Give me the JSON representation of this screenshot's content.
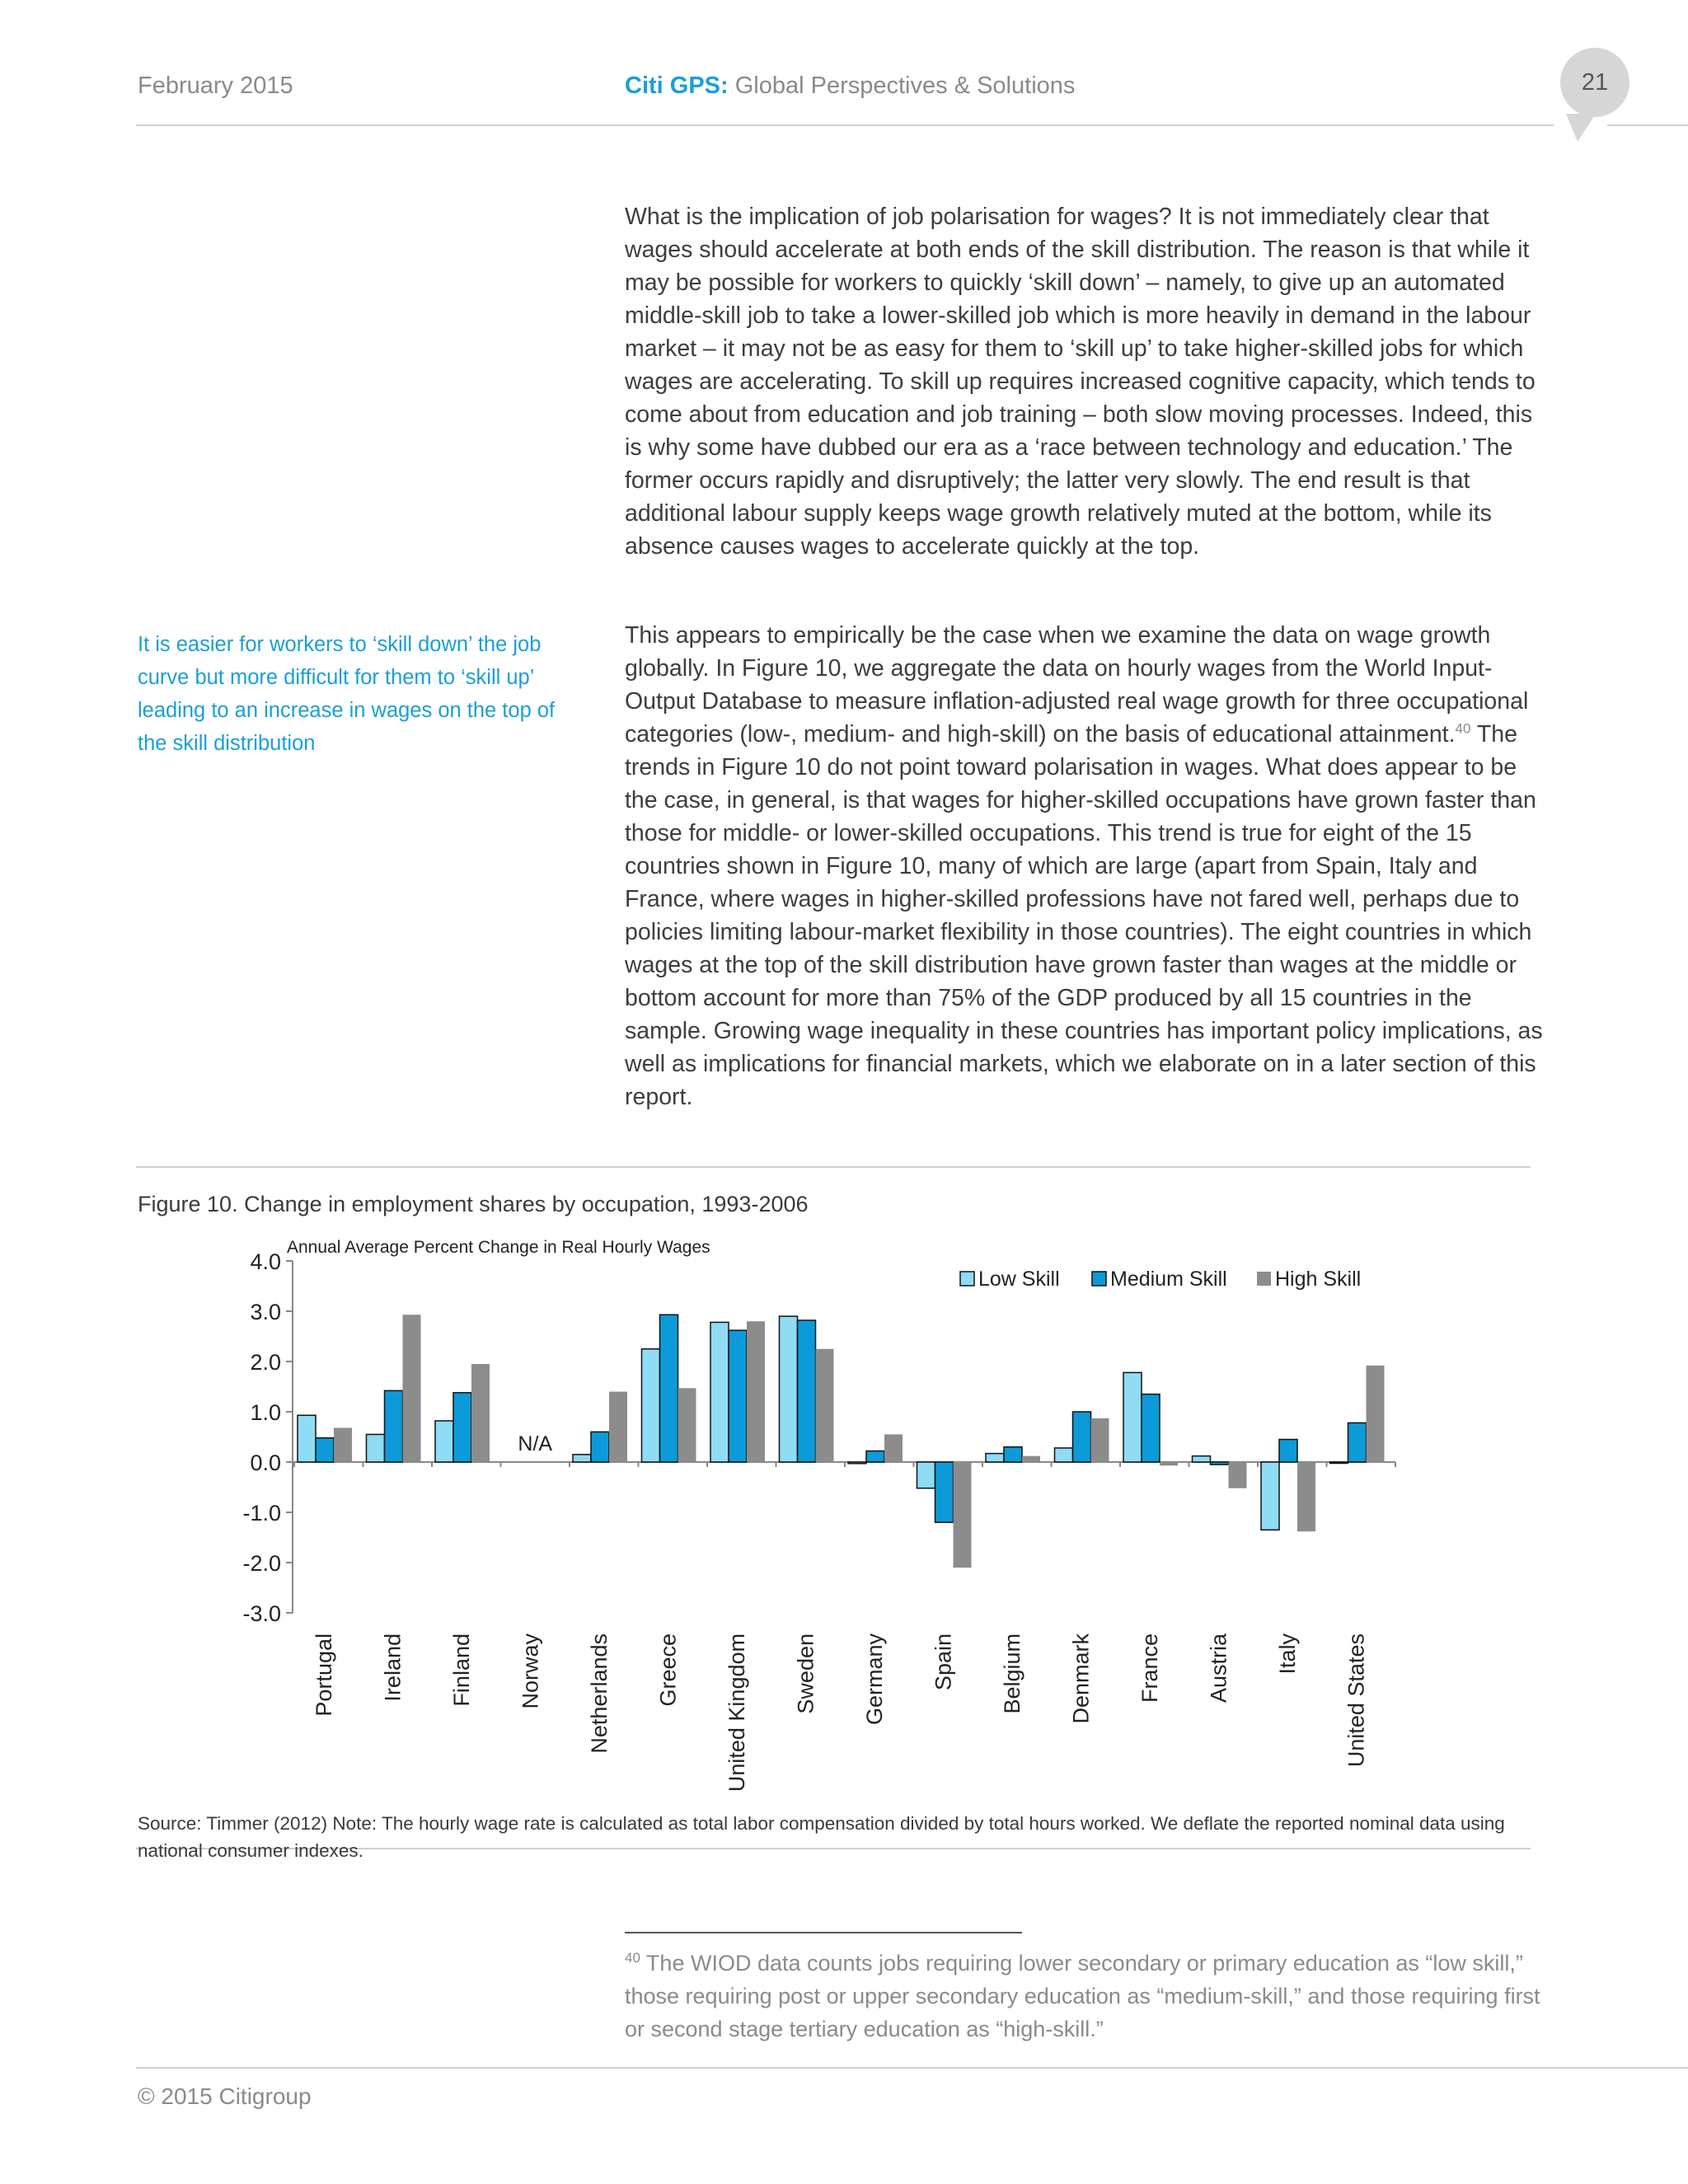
{
  "header": {
    "date": "February 2015",
    "brand": "Citi GPS:",
    "subtitle": "Global Perspectives & Solutions",
    "page_number": "21"
  },
  "body": {
    "paragraph1": "What is the implication of job polarisation for wages? It is not immediately clear that wages should accelerate at both ends of the skill distribution. The reason is that while it may be possible for workers to quickly ‘skill down’ – namely, to give up an automated middle-skill job to take a lower-skilled job which is more heavily in demand in the labour market – it may not be as easy for them to ‘skill up’ to take higher-skilled jobs for which wages are accelerating. To skill up requires increased cognitive capacity, which tends to come about from education and job training – both slow moving processes. Indeed, this is why some have dubbed our era as a ‘race between technology and education.’ The former occurs rapidly and disruptively; the latter very slowly. The end result is that additional labour supply keeps wage growth relatively muted at the bottom, while its absence causes wages to accelerate quickly at the top.",
    "paragraph2_before": "This appears to empirically be the case when we examine the data on wage growth globally. In Figure 10, we aggregate the data on hourly wages from the World Input-Output Database to measure inflation-adjusted real wage growth for three occupational categories (low-, medium- and high-skill) on the basis of educational attainment.",
    "paragraph2_ref": "40",
    "paragraph2_after": " The trends in Figure 10 do not point toward polarisation in wages. What does appear to be the case, in general, is that wages for higher-skilled occupations have grown faster than those for middle- or lower-skilled occupations. This trend is true for eight of the 15 countries shown in Figure 10, many of which are large (apart from Spain, Italy and France, where wages in higher-skilled professions have not fared well, perhaps due to policies limiting labour-market flexibility in those countries). The eight countries in which wages at the top of the skill distribution have grown faster than wages at the middle or bottom account for more than 75% of the GDP produced by all 15 countries in the sample. Growing wage inequality in these countries has important policy implications, as well as implications for financial markets, which we elaborate on in a later section of this report."
  },
  "sidebar_note": "It is easier for workers to ‘skill down’ the job curve but more difficult for them to ‘skill up’ leading to an increase in wages on the top of the skill distribution",
  "figure": {
    "title": "Figure 10. Change in employment shares by occupation, 1993-2006",
    "source": "Source: Timmer (2012) Note: The hourly wage rate is calculated as total labor compensation divided by total hours worked. We deflate the reported nominal data using national consumer indexes."
  },
  "chart_data": {
    "type": "bar",
    "title": "",
    "ylabel": "Annual Average Percent Change in Real Hourly Wages",
    "xlabel": "",
    "ylim": [
      -3.0,
      4.0
    ],
    "yticks": [
      "4.0",
      "3.0",
      "2.0",
      "1.0",
      "0.0",
      "-1.0",
      "-2.0",
      "-3.0"
    ],
    "grid": false,
    "legend_position": "top-right",
    "categories": [
      "Portugal",
      "Ireland",
      "Finland",
      "Norway",
      "Netherlands",
      "Greece",
      "United Kingdom",
      "Sweden",
      "Germany",
      "Spain",
      "Belgium",
      "Denmark",
      "France",
      "Austria",
      "Italy",
      "United States"
    ],
    "series": [
      {
        "name": "Low Skill",
        "color": "#8fdcf5",
        "values": [
          0.93,
          0.55,
          0.82,
          null,
          0.15,
          2.25,
          2.78,
          2.9,
          -0.03,
          -0.52,
          0.17,
          0.28,
          1.78,
          0.12,
          -1.35,
          -0.02
        ]
      },
      {
        "name": "Medium Skill",
        "color": "#0c9ad8",
        "values": [
          0.48,
          1.42,
          1.38,
          null,
          0.6,
          2.93,
          2.62,
          2.82,
          0.22,
          -1.2,
          0.3,
          1.0,
          1.35,
          -0.05,
          0.45,
          0.78
        ]
      },
      {
        "name": "High Skill",
        "color": "#8c8c8c",
        "values": [
          0.68,
          2.93,
          1.95,
          null,
          1.4,
          1.47,
          2.8,
          2.25,
          0.55,
          -2.1,
          0.12,
          0.87,
          -0.07,
          -0.52,
          -1.38,
          1.92
        ]
      }
    ],
    "annotations": [
      {
        "category": "Norway",
        "text": "N/A"
      }
    ]
  },
  "footnote": {
    "number": "40",
    "text": " The WIOD data counts jobs requiring lower secondary or primary education as “low skill,” those requiring post or upper secondary education as “medium-skill,” and those requiring first or second stage tertiary education as “high-skill.”"
  },
  "footer": {
    "copyright": "© 2015 Citigroup"
  }
}
